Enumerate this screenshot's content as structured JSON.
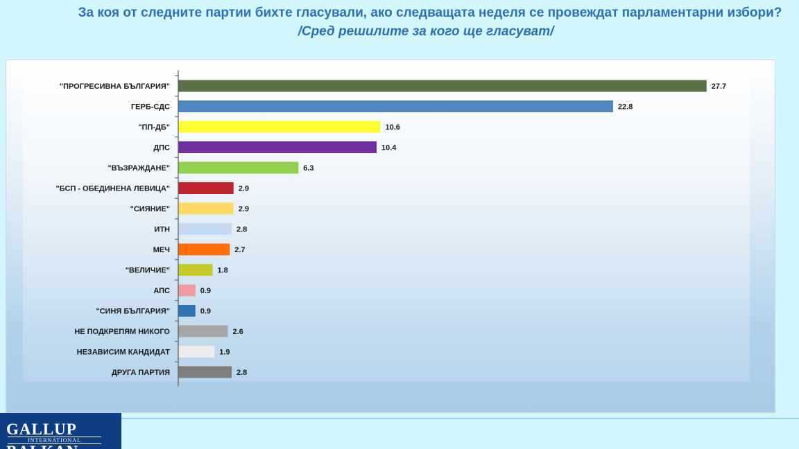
{
  "header": {
    "title": "За коя от следните партии бихте  гласували,  ако следващата неделя се провеждат парламентарни избори?",
    "subtitle": "/Сред решилите за кого ще гласуват/"
  },
  "logo": {
    "top": "GALLUP",
    "middle": "INTERNATIONAL",
    "bottom": "BALKAN"
  },
  "chart_data": {
    "type": "bar",
    "orientation": "horizontal",
    "categories": [
      "\"ПРОГРЕСИВНА БЪЛГАРИЯ\"",
      "ГЕРБ-СДС",
      "\"ПП-ДБ\"",
      "ДПС",
      "\"ВЪЗРАЖДАНЕ\"",
      "\"БСП - ОБЕДИНЕНА ЛЕВИЦА\"",
      "\"СИЯНИЕ\"",
      "ИТН",
      "МЕЧ",
      "\"ВЕЛИЧИЕ\"",
      "АПС",
      "\"СИНЯ БЪЛГАРИЯ\"",
      "НЕ ПОДКРЕПЯМ НИКОГО",
      "НЕЗАВИСИМ КАНДИДАТ",
      "ДРУГА ПАРТИЯ"
    ],
    "values": [
      27.7,
      22.8,
      10.6,
      10.4,
      6.3,
      2.9,
      2.9,
      2.8,
      2.7,
      1.8,
      0.9,
      0.9,
      2.6,
      1.9,
      2.8
    ],
    "value_labels": [
      "27.7",
      "22.8",
      "10.6",
      "10.4",
      "6.3",
      "2.9",
      "2.9",
      "2.8",
      "2.7",
      "1.8",
      "0.9",
      "0.9",
      "2.6",
      "1.9",
      "2.8"
    ],
    "colors": [
      "#5a7246",
      "#4f87c3",
      "#ffff33",
      "#7030a0",
      "#92d050",
      "#c0272d",
      "#ffd966",
      "#c5d9f0",
      "#ff6d0d",
      "#c5c92a",
      "#f19ca0",
      "#2e75b6",
      "#a6a6a6",
      "#ececec",
      "#7f7f7f"
    ],
    "xlim": [
      0,
      31
    ],
    "grid": false,
    "legend": "none"
  }
}
